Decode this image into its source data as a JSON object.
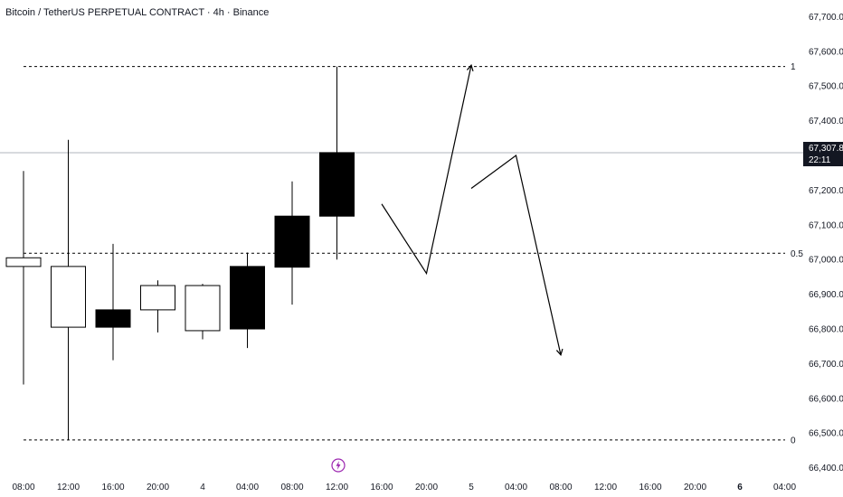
{
  "header": {
    "title": "Bitcoin / TetherUS PERPETUAL CONTRACT · 4h · Binance"
  },
  "price_badge": {
    "price": "67,307.8",
    "countdown": "22:11"
  },
  "event_marker": {
    "icon": "lightning-icon",
    "color": "#9c27b0"
  },
  "colors": {
    "bull_body": "#ffffff",
    "bear_body": "#000000",
    "wick": "#000000",
    "grid_level": "#000000",
    "price_line": "#b2b5be"
  },
  "chart_data": {
    "type": "candlestick",
    "title": "Bitcoin / TetherUS PERPETUAL CONTRACT · 4h · Binance",
    "y_ticks": [
      "67,700.0",
      "67,600.0",
      "67,500.0",
      "67,400.0",
      "67,300.0",
      "67,200.0",
      "67,100.0",
      "67,000.0",
      "66,900.0",
      "66,800.0",
      "66,700.0",
      "66,600.0",
      "66,500.0",
      "66,400.0"
    ],
    "y_tick_values": [
      67700,
      67600,
      67500,
      67400,
      67300,
      67200,
      67100,
      67000,
      66900,
      66800,
      66700,
      66600,
      66500,
      66400
    ],
    "ylim": [
      66360,
      67740
    ],
    "x_ticks": [
      "08:00",
      "12:00",
      "16:00",
      "20:00",
      "4",
      "04:00",
      "08:00",
      "12:00",
      "16:00",
      "20:00",
      "5",
      "04:00",
      "08:00",
      "12:00",
      "16:00",
      "20:00",
      "6",
      "04:00"
    ],
    "x_tick_bold": [
      false,
      false,
      false,
      false,
      false,
      false,
      false,
      false,
      false,
      false,
      false,
      false,
      false,
      false,
      false,
      false,
      true,
      false
    ],
    "candles": [
      {
        "x": "08:00",
        "open": 66980,
        "high": 67255,
        "low": 66640,
        "close": 67005
      },
      {
        "x": "12:00",
        "open": 66805,
        "high": 67345,
        "low": 66480,
        "close": 66980
      },
      {
        "x": "16:00",
        "open": 66855,
        "high": 67045,
        "low": 66710,
        "close": 66805
      },
      {
        "x": "20:00",
        "open": 66855,
        "high": 66940,
        "low": 66790,
        "close": 66925
      },
      {
        "x": "4",
        "open": 66795,
        "high": 66930,
        "low": 66770,
        "close": 66925
      },
      {
        "x": "04:00",
        "open": 66980,
        "high": 67020,
        "low": 66745,
        "close": 66800
      },
      {
        "x": "08:00",
        "open": 67125,
        "high": 67225,
        "low": 66870,
        "close": 66978
      },
      {
        "x": "12:00",
        "open": 67308,
        "high": 67556,
        "low": 67000,
        "close": 67125
      }
    ],
    "fib_levels": [
      {
        "label": "1",
        "value": 67556
      },
      {
        "label": "0.5",
        "value": 67018
      },
      {
        "label": "0",
        "value": 66480
      }
    ],
    "last_price": 67307.8,
    "projection": [
      {
        "path": [
          [
            8.0,
            67160
          ],
          [
            9.0,
            66960
          ],
          [
            10.0,
            67560
          ]
        ]
      },
      {
        "path": [
          [
            10.0,
            67205
          ],
          [
            11.0,
            67300
          ],
          [
            12.0,
            66725
          ]
        ]
      }
    ]
  }
}
